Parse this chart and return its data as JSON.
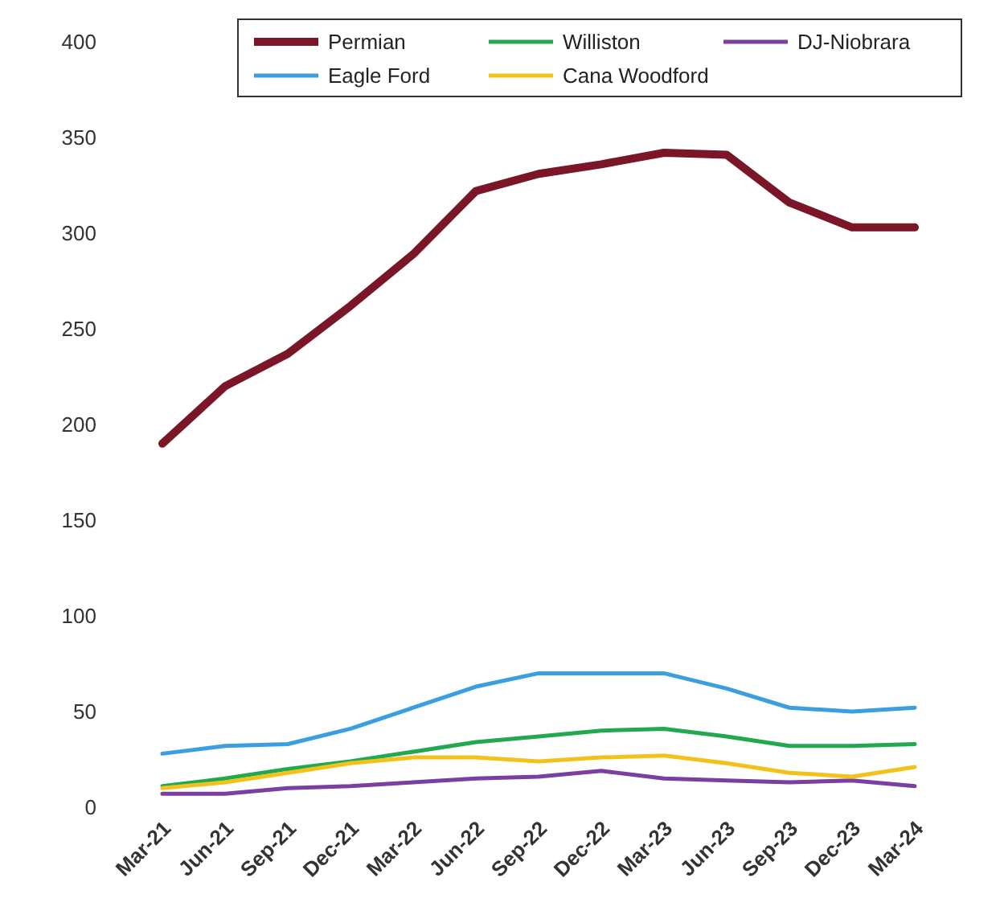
{
  "chart_data": {
    "type": "line",
    "categories": [
      "Mar-21",
      "Jun-21",
      "Sep-21",
      "Dec-21",
      "Mar-22",
      "Jun-22",
      "Sep-22",
      "Dec-22",
      "Mar-23",
      "Jun-23",
      "Sep-23",
      "Dec-23",
      "Mar-24"
    ],
    "series": [
      {
        "name": "Permian",
        "color": "#7b1628",
        "values": [
          190,
          220,
          237,
          262,
          289,
          322,
          331,
          336,
          342,
          341,
          316,
          303,
          303
        ]
      },
      {
        "name": "Williston",
        "color": "#22a84f",
        "values": [
          11,
          15,
          20,
          24,
          29,
          34,
          37,
          40,
          41,
          37,
          32,
          32,
          33
        ]
      },
      {
        "name": "DJ-Niobrara",
        "color": "#7b3fa0",
        "values": [
          7,
          7,
          10,
          11,
          13,
          15,
          16,
          19,
          15,
          14,
          13,
          14,
          11
        ]
      },
      {
        "name": "Eagle Ford",
        "color": "#3a9ee0",
        "values": [
          28,
          32,
          33,
          41,
          52,
          63,
          70,
          70,
          70,
          62,
          52,
          50,
          52
        ]
      },
      {
        "name": "Cana Woodford",
        "color": "#f2c21b",
        "values": [
          10,
          13,
          18,
          23,
          26,
          26,
          24,
          26,
          27,
          23,
          18,
          16,
          21
        ]
      }
    ],
    "ylim": [
      0,
      400
    ],
    "yticks": [
      0,
      50,
      100,
      150,
      200,
      250,
      300,
      350,
      400
    ],
    "grid": false,
    "legend": "top",
    "marker": "none",
    "line_style": "solid"
  }
}
